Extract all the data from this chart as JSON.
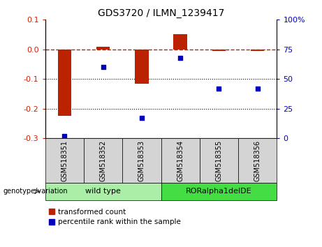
{
  "title": "GDS3720 / ILMN_1239417",
  "samples": [
    "GSM518351",
    "GSM518352",
    "GSM518353",
    "GSM518354",
    "GSM518355",
    "GSM518356"
  ],
  "bar_values": [
    -0.225,
    0.008,
    -0.115,
    0.052,
    -0.005,
    -0.005
  ],
  "scatter_values": [
    2,
    60,
    17,
    68,
    42,
    42
  ],
  "ylim_left": [
    -0.3,
    0.1
  ],
  "ylim_right": [
    0,
    100
  ],
  "left_ticks": [
    0.1,
    0.0,
    -0.1,
    -0.2,
    -0.3
  ],
  "right_ticks": [
    100,
    75,
    50,
    25,
    0
  ],
  "bar_color": "#bb2200",
  "scatter_color": "#0000bb",
  "dotted_lines": [
    -0.1,
    -0.2
  ],
  "genotype_label": "genotype/variation",
  "group1_label": "wild type",
  "group2_label": "RORalpha1delDE",
  "group1_indices": [
    0,
    1,
    2
  ],
  "group2_indices": [
    3,
    4,
    5
  ],
  "group1_color": "#aaeea8",
  "group2_color": "#44dd44",
  "legend1_label": "transformed count",
  "legend2_label": "percentile rank within the sample",
  "left_label_color": "#cc2200",
  "right_label_color": "#0000cc",
  "bar_width": 0.35
}
